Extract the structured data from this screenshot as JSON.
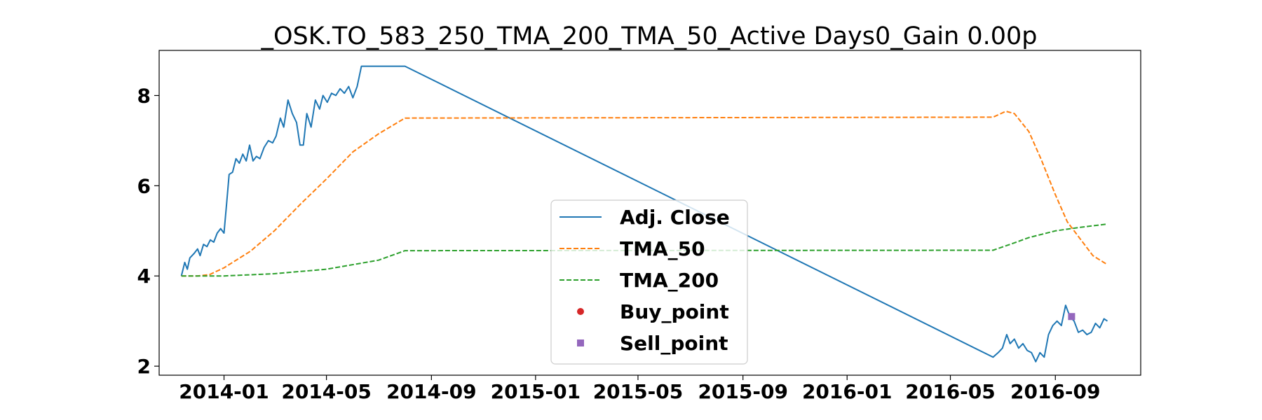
{
  "chart_data": {
    "type": "line",
    "title": "_OSK.TO_583_250_TMA_200_TMA_50_Active Days0_Gain   0.00p",
    "xlabel": "",
    "ylabel": "",
    "x_tick_labels": [
      "2014-01",
      "2014-05",
      "2014-09",
      "2015-01",
      "2015-05",
      "2015-09",
      "2016-01",
      "2016-05",
      "2016-09"
    ],
    "x_ticks": [
      "2014-01-01",
      "2014-05-01",
      "2014-09-01",
      "2015-01-01",
      "2015-05-01",
      "2015-09-01",
      "2016-01-01",
      "2016-05-01",
      "2016-09-01"
    ],
    "xlim": [
      "2013-10-17",
      "2016-12-10"
    ],
    "ylim": [
      1.8,
      9.0
    ],
    "y_ticks": [
      2,
      4,
      6,
      8
    ],
    "legend_position": "lower-center",
    "series": [
      {
        "name": "Adj. Close",
        "color": "#1f77b4",
        "style": "solid",
        "points": [
          [
            "2013-11-12",
            4.0
          ],
          [
            "2013-11-16",
            4.3
          ],
          [
            "2013-11-19",
            4.15
          ],
          [
            "2013-11-22",
            4.4
          ],
          [
            "2013-11-27",
            4.5
          ],
          [
            "2013-12-01",
            4.6
          ],
          [
            "2013-12-04",
            4.45
          ],
          [
            "2013-12-08",
            4.7
          ],
          [
            "2013-12-12",
            4.65
          ],
          [
            "2013-12-16",
            4.8
          ],
          [
            "2013-12-20",
            4.75
          ],
          [
            "2013-12-24",
            4.95
          ],
          [
            "2013-12-28",
            5.05
          ],
          [
            "2014-01-01",
            4.95
          ],
          [
            "2014-01-04",
            5.6
          ],
          [
            "2014-01-07",
            6.25
          ],
          [
            "2014-01-11",
            6.3
          ],
          [
            "2014-01-15",
            6.6
          ],
          [
            "2014-01-19",
            6.5
          ],
          [
            "2014-01-23",
            6.7
          ],
          [
            "2014-01-27",
            6.55
          ],
          [
            "2014-01-31",
            6.9
          ],
          [
            "2014-02-04",
            6.55
          ],
          [
            "2014-02-08",
            6.65
          ],
          [
            "2014-02-12",
            6.6
          ],
          [
            "2014-02-17",
            6.85
          ],
          [
            "2014-02-22",
            7.0
          ],
          [
            "2014-02-27",
            6.95
          ],
          [
            "2014-03-03",
            7.1
          ],
          [
            "2014-03-08",
            7.5
          ],
          [
            "2014-03-12",
            7.3
          ],
          [
            "2014-03-17",
            7.9
          ],
          [
            "2014-03-22",
            7.6
          ],
          [
            "2014-03-27",
            7.4
          ],
          [
            "2014-03-31",
            6.9
          ],
          [
            "2014-04-04",
            6.9
          ],
          [
            "2014-04-08",
            7.6
          ],
          [
            "2014-04-13",
            7.3
          ],
          [
            "2014-04-18",
            7.9
          ],
          [
            "2014-04-23",
            7.7
          ],
          [
            "2014-04-27",
            8.0
          ],
          [
            "2014-05-02",
            7.85
          ],
          [
            "2014-05-07",
            8.05
          ],
          [
            "2014-05-12",
            8.0
          ],
          [
            "2014-05-17",
            8.15
          ],
          [
            "2014-05-22",
            8.05
          ],
          [
            "2014-05-27",
            8.2
          ],
          [
            "2014-06-01",
            7.95
          ],
          [
            "2014-06-06",
            8.2
          ],
          [
            "2014-06-11",
            8.65
          ],
          [
            "2014-08-01",
            8.65
          ],
          [
            "2016-06-20",
            2.2
          ],
          [
            "2016-06-26",
            2.3
          ],
          [
            "2016-07-01",
            2.4
          ],
          [
            "2016-07-06",
            2.7
          ],
          [
            "2016-07-10",
            2.5
          ],
          [
            "2016-07-15",
            2.6
          ],
          [
            "2016-07-20",
            2.4
          ],
          [
            "2016-07-25",
            2.5
          ],
          [
            "2016-07-30",
            2.35
          ],
          [
            "2016-08-04",
            2.3
          ],
          [
            "2016-08-09",
            2.1
          ],
          [
            "2016-08-14",
            2.3
          ],
          [
            "2016-08-19",
            2.2
          ],
          [
            "2016-08-24",
            2.7
          ],
          [
            "2016-08-29",
            2.9
          ],
          [
            "2016-09-03",
            3.0
          ],
          [
            "2016-09-08",
            2.9
          ],
          [
            "2016-09-13",
            3.35
          ],
          [
            "2016-09-18",
            3.1
          ],
          [
            "2016-09-23",
            3.0
          ],
          [
            "2016-09-28",
            2.75
          ],
          [
            "2016-10-03",
            2.8
          ],
          [
            "2016-10-08",
            2.7
          ],
          [
            "2016-10-13",
            2.75
          ],
          [
            "2016-10-18",
            2.95
          ],
          [
            "2016-10-23",
            2.85
          ],
          [
            "2016-10-28",
            3.05
          ],
          [
            "2016-11-01",
            3.0
          ]
        ]
      },
      {
        "name": "TMA_50",
        "color": "#ff7f0e",
        "style": "dashed",
        "points": [
          [
            "2013-11-12",
            4.0
          ],
          [
            "2013-12-01",
            4.0
          ],
          [
            "2013-12-15",
            4.03
          ],
          [
            "2014-01-01",
            4.18
          ],
          [
            "2014-02-01",
            4.55
          ],
          [
            "2014-03-01",
            5.0
          ],
          [
            "2014-04-01",
            5.6
          ],
          [
            "2014-05-01",
            6.15
          ],
          [
            "2014-06-01",
            6.75
          ],
          [
            "2014-07-01",
            7.15
          ],
          [
            "2014-08-01",
            7.5
          ],
          [
            "2016-06-20",
            7.52
          ],
          [
            "2016-07-05",
            7.65
          ],
          [
            "2016-07-15",
            7.6
          ],
          [
            "2016-08-01",
            7.2
          ],
          [
            "2016-08-15",
            6.6
          ],
          [
            "2016-09-01",
            5.8
          ],
          [
            "2016-09-15",
            5.2
          ],
          [
            "2016-10-01",
            4.8
          ],
          [
            "2016-10-15",
            4.45
          ],
          [
            "2016-11-01",
            4.25
          ]
        ]
      },
      {
        "name": "TMA_200",
        "color": "#2ca02c",
        "style": "dashed",
        "points": [
          [
            "2013-11-12",
            4.0
          ],
          [
            "2014-01-01",
            4.0
          ],
          [
            "2014-03-01",
            4.05
          ],
          [
            "2014-05-01",
            4.15
          ],
          [
            "2014-07-01",
            4.35
          ],
          [
            "2014-08-01",
            4.56
          ],
          [
            "2016-06-20",
            4.57
          ],
          [
            "2016-07-10",
            4.7
          ],
          [
            "2016-08-01",
            4.85
          ],
          [
            "2016-09-01",
            5.0
          ],
          [
            "2016-10-01",
            5.08
          ],
          [
            "2016-11-01",
            5.15
          ]
        ]
      }
    ],
    "markers": [
      {
        "name": "Buy_point",
        "color": "#d62728",
        "shape": "circle",
        "points": []
      },
      {
        "name": "Sell_point",
        "color": "#9467bd",
        "shape": "square",
        "points": [
          [
            "2016-09-20",
            3.1
          ]
        ]
      }
    ]
  }
}
